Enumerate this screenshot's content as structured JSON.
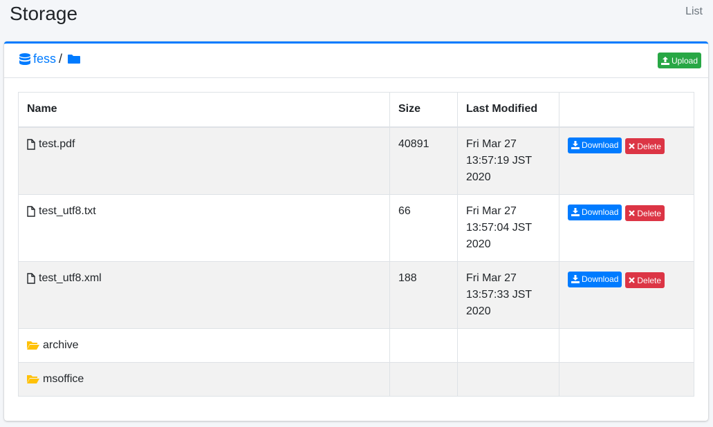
{
  "page": {
    "title": "Storage",
    "breadcrumb": "List"
  },
  "path": {
    "root": "fess",
    "separator": "/"
  },
  "toolbar": {
    "upload_label": "Upload"
  },
  "table": {
    "headers": [
      "Name",
      "Size",
      "Last Modified",
      ""
    ],
    "files": [
      {
        "name": "test.pdf",
        "size": "40891",
        "modified": [
          "Fri Mar 27",
          "13:57:19 JST",
          "2020"
        ]
      },
      {
        "name": "test_utf8.txt",
        "size": "66",
        "modified": [
          "Fri Mar 27",
          "13:57:04 JST",
          "2020"
        ]
      },
      {
        "name": "test_utf8.xml",
        "size": "188",
        "modified": [
          "Fri Mar 27",
          "13:57:33 JST",
          "2020"
        ]
      }
    ],
    "folders": [
      {
        "name": "archive"
      },
      {
        "name": "msoffice"
      }
    ],
    "download_label": "Download",
    "delete_label": "Delete"
  },
  "colors": {
    "primary": "#007bff",
    "success": "#28a745",
    "danger": "#dc3545",
    "folder": "#ffc107"
  }
}
